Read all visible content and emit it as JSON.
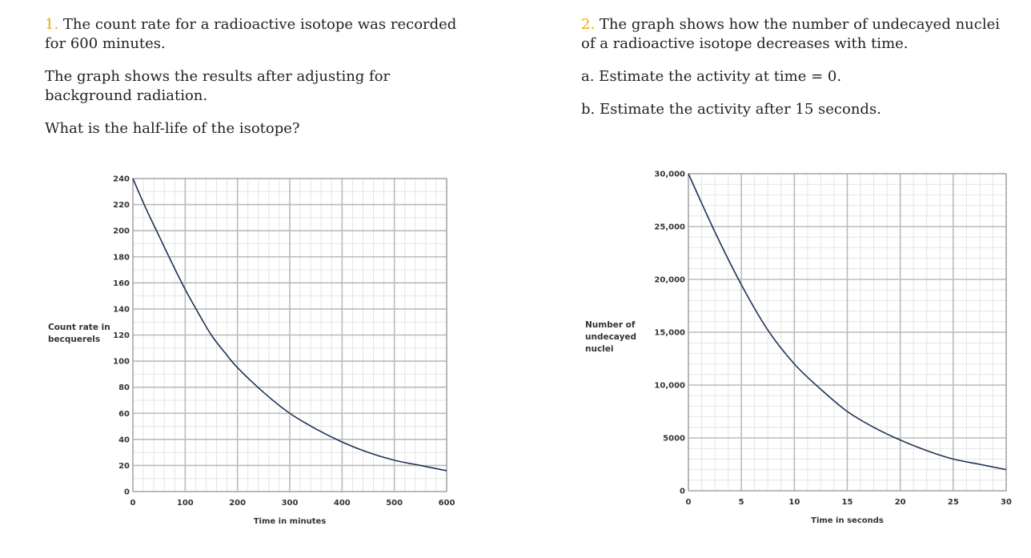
{
  "q1": {
    "number": "1.",
    "text1": " The count rate for a radioactive isotope was recorded for 600 minutes.",
    "text2": "The graph shows the results after adjusting for background radiation.",
    "text3": "What is the half-life of the isotope?"
  },
  "q2": {
    "number": "2.",
    "text1": " The graph shows how the number of undecayed nuclei of a radioactive isotope decreases with time.",
    "text2": "a. Estimate the activity at time = 0.",
    "text3": "b. Estimate the activity after 15 seconds."
  },
  "colors": {
    "question_number": "#f0a500",
    "curve": "#1f3355",
    "grid_major": "#bbbbbb",
    "grid_minor": "#e4e4e4"
  },
  "chart_data": [
    {
      "type": "line",
      "xlabel": "Time in minutes",
      "ylabel": "Count rate in becquerels",
      "xlim": [
        0,
        600
      ],
      "ylim": [
        0,
        240
      ],
      "x_ticks": [
        "0",
        "100",
        "200",
        "300",
        "400",
        "500",
        "600"
      ],
      "y_ticks": [
        "0",
        "20",
        "40",
        "60",
        "80",
        "100",
        "120",
        "140",
        "160",
        "180",
        "200",
        "220",
        "240"
      ],
      "grid": true,
      "series": [
        {
          "x": [
            0,
            25,
            50,
            75,
            100,
            125,
            150,
            175,
            200,
            250,
            300,
            350,
            400,
            450,
            500,
            550,
            600
          ],
          "y": [
            240,
            217,
            196,
            175,
            155,
            137,
            120,
            107,
            95,
            76,
            60,
            48,
            38,
            30,
            24,
            20,
            16
          ]
        }
      ]
    },
    {
      "type": "line",
      "xlabel": "Time in seconds",
      "ylabel": "Number of undecayed nuclei",
      "xlim": [
        0,
        30
      ],
      "ylim": [
        0,
        30000
      ],
      "x_ticks": [
        "0",
        "5",
        "10",
        "15",
        "20",
        "25",
        "30"
      ],
      "y_ticks": [
        "0",
        "5000",
        "10,000",
        "15,000",
        "20,000",
        "25,000",
        "30,000"
      ],
      "grid": true,
      "series": [
        {
          "x": [
            0,
            2.5,
            5,
            7.5,
            10,
            12.5,
            15,
            17.5,
            20,
            22.5,
            25,
            27.5,
            30
          ],
          "y": [
            30000,
            24500,
            19500,
            15200,
            12000,
            9600,
            7500,
            6000,
            4800,
            3800,
            3000,
            2500,
            2000
          ]
        }
      ]
    }
  ]
}
